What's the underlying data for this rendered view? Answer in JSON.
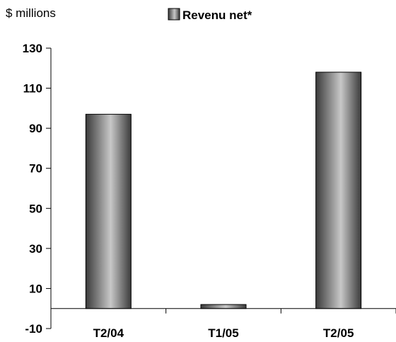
{
  "unit_label": "$ millions",
  "chart_data": {
    "type": "bar",
    "categories": [
      "T2/04",
      "T1/05",
      "T2/05"
    ],
    "series": [
      {
        "name": "Revenu net*",
        "values": [
          97,
          2,
          118
        ]
      }
    ],
    "ylabel": "$ millions",
    "ylim": [
      -10,
      130
    ],
    "yticks": [
      -10,
      10,
      30,
      50,
      70,
      90,
      110,
      130
    ],
    "grid": false,
    "legend": "top-center"
  },
  "colors": {
    "bar_dark": "#3a3a3a",
    "bar_light": "#c8c8c8",
    "axis": "#000000"
  }
}
